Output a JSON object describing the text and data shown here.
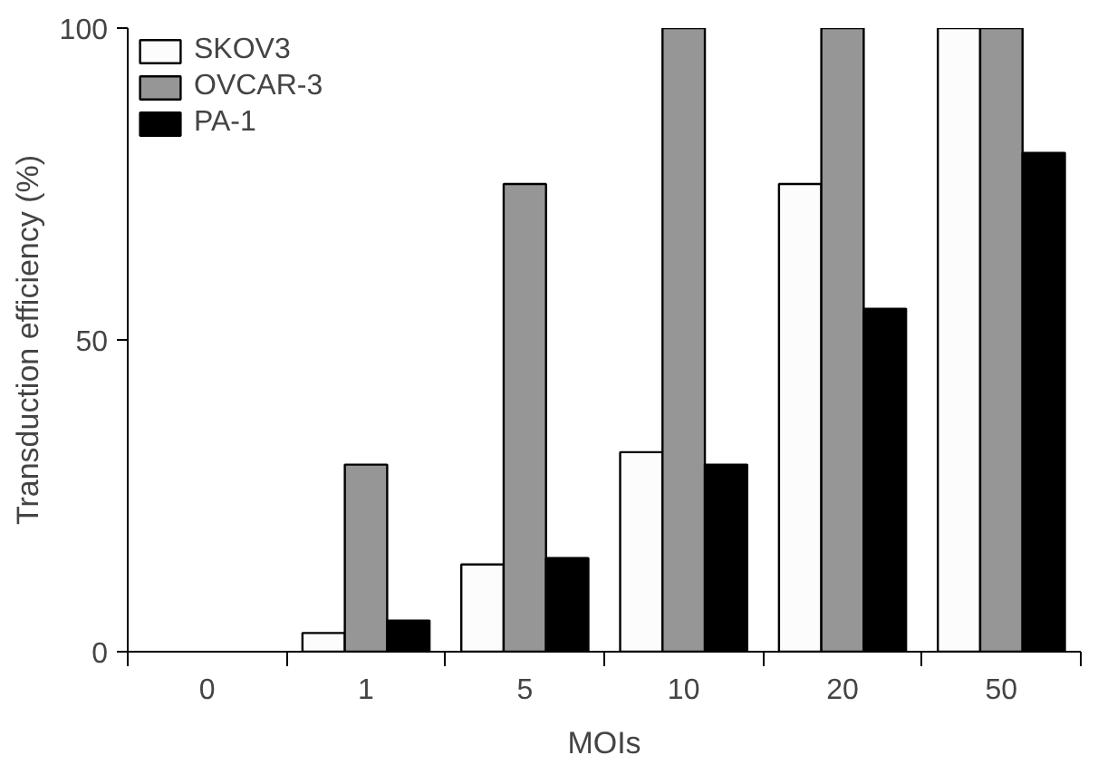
{
  "chart_data": {
    "type": "bar",
    "xlabel": "MOIs",
    "ylabel": "Transduction efficiency (%)",
    "categories": [
      "0",
      "1",
      "5",
      "10",
      "20",
      "50"
    ],
    "series": [
      {
        "name": "SKOV3",
        "color": "#fcfcfc",
        "values": [
          null,
          3,
          14,
          32,
          75,
          100
        ]
      },
      {
        "name": "OVCAR-3",
        "color": "#969696",
        "values": [
          null,
          30,
          75,
          100,
          100,
          100
        ]
      },
      {
        "name": "PA-1",
        "color": "#000000",
        "values": [
          null,
          5,
          15,
          30,
          55,
          80
        ]
      }
    ],
    "ylim": [
      0,
      100
    ],
    "yticks": [
      0,
      50,
      100
    ],
    "grid": false,
    "legend": "top left"
  }
}
